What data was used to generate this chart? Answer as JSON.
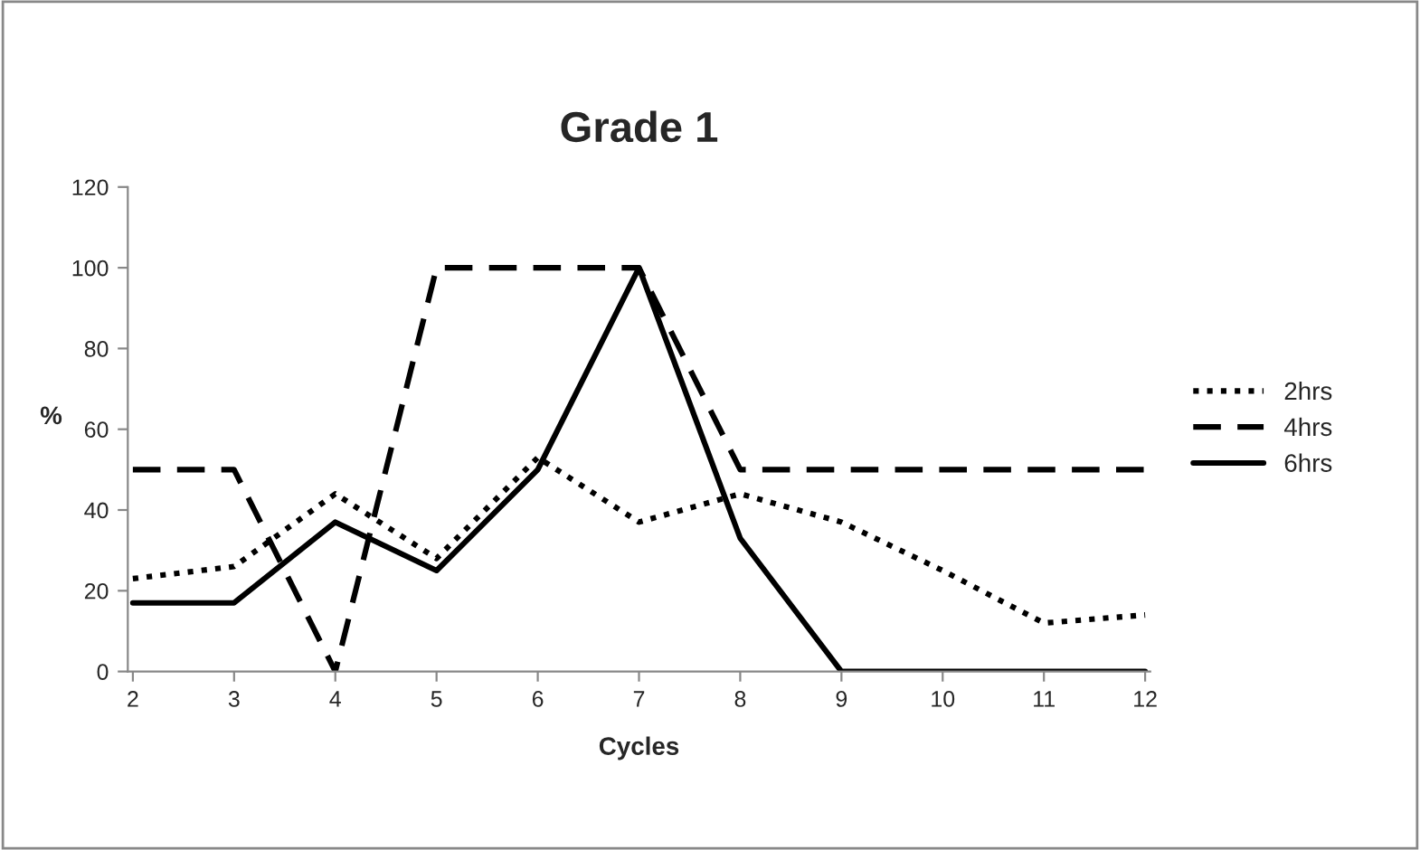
{
  "chart_data": {
    "type": "line",
    "title": "Grade 1",
    "xlabel": "Cycles",
    "ylabel": "%",
    "categories": [
      "2",
      "3",
      "4",
      "5",
      "6",
      "7",
      "8",
      "9",
      "10",
      "11",
      "12"
    ],
    "series": [
      {
        "name": "2hrs",
        "color": "#000000",
        "line_style": "dotted",
        "values": [
          23,
          26,
          44,
          28,
          53,
          37,
          44,
          37,
          25,
          12,
          14
        ]
      },
      {
        "name": "4hrs",
        "color": "#000000",
        "line_style": "dashed",
        "values": [
          50,
          50,
          0,
          100,
          100,
          100,
          50,
          50,
          50,
          50,
          50
        ]
      },
      {
        "name": "6hrs",
        "color": "#000000",
        "line_style": "solid",
        "values": [
          17,
          17,
          37,
          25,
          50,
          100,
          33,
          0,
          0,
          0,
          0
        ]
      }
    ],
    "ylim": [
      0,
      120
    ],
    "yticks": [
      0,
      20,
      40,
      60,
      80,
      100,
      120
    ],
    "grid": false,
    "legend": "right",
    "marker": "none"
  }
}
